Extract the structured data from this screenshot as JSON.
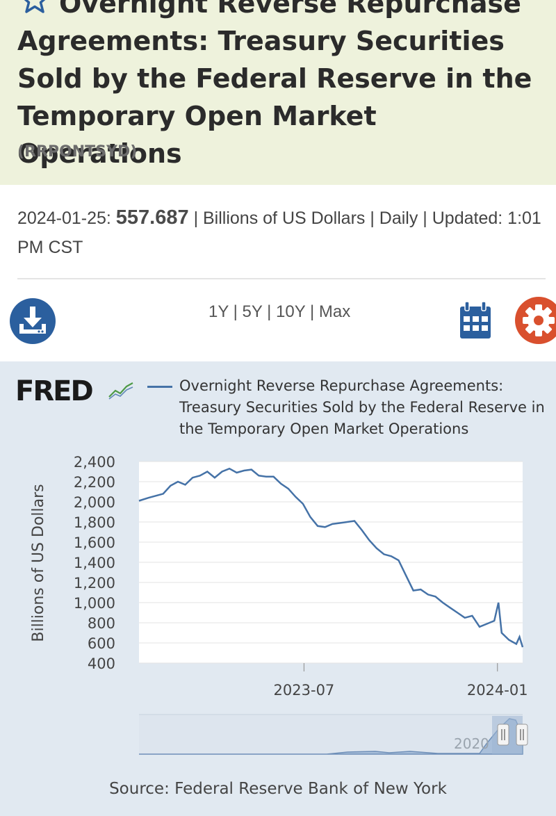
{
  "header": {
    "title": "Overnight Reverse Repurchase Agreements: Treasury Securities Sold by the Federal Reserve in the Temporary Open Market Operations",
    "series_id": "(RRPONTSYD)"
  },
  "meta": {
    "date": "2024-01-25:",
    "value": "557.687",
    "rest": "| Billions of US Dollars | Daily | Updated: 1:01 PM CST"
  },
  "toolbar": {
    "ranges": [
      "1Y",
      "5Y",
      "10Y",
      "Max"
    ],
    "separator": "|"
  },
  "chart": {
    "logo": "FRED",
    "legend": "Overnight Reverse Repurchase Agreements: Treasury Securities Sold by the Federal Reserve in the Temporary Open Market Operations",
    "source": "Source: Federal Reserve Bank of New York",
    "navigator_label": "2020"
  },
  "colors": {
    "series": "#4572a7",
    "title_band": "#eef2dc",
    "panel": "#e1e9f1",
    "accent_blue": "#2b5f9e",
    "accent_orange": "#d9502e"
  },
  "chart_data": {
    "type": "line",
    "title": "Overnight Reverse Repurchase Agreements: Treasury Securities Sold by the Federal Reserve in the Temporary Open Market Operations",
    "xlabel": "",
    "ylabel": "Billions of US Dollars",
    "ylim": [
      400,
      2400
    ],
    "yticks": [
      400,
      600,
      800,
      1000,
      1200,
      1400,
      1600,
      1800,
      2000,
      2200,
      2400
    ],
    "ytick_labels": [
      "400",
      "600",
      "800",
      "1,000",
      "1,200",
      "1,400",
      "1,600",
      "1,800",
      "2,000",
      "2,200",
      "2,400"
    ],
    "xlim": [
      "2023-01-25",
      "2024-01-25"
    ],
    "xticks": [
      {
        "date": "2023-07-01",
        "label": "2023-07"
      },
      {
        "date": "2024-01-01",
        "label": "2024-01"
      }
    ],
    "series": [
      {
        "name": "RRPONTSYD",
        "points": [
          [
            "2023-01-25",
            2010
          ],
          [
            "2023-02-03",
            2040
          ],
          [
            "2023-02-10",
            2060
          ],
          [
            "2023-02-17",
            2080
          ],
          [
            "2023-02-24",
            2160
          ],
          [
            "2023-03-03",
            2200
          ],
          [
            "2023-03-10",
            2170
          ],
          [
            "2023-03-17",
            2240
          ],
          [
            "2023-03-24",
            2260
          ],
          [
            "2023-03-31",
            2300
          ],
          [
            "2023-04-07",
            2240
          ],
          [
            "2023-04-14",
            2300
          ],
          [
            "2023-04-21",
            2330
          ],
          [
            "2023-04-28",
            2290
          ],
          [
            "2023-05-05",
            2310
          ],
          [
            "2023-05-12",
            2320
          ],
          [
            "2023-05-19",
            2260
          ],
          [
            "2023-05-26",
            2250
          ],
          [
            "2023-06-02",
            2250
          ],
          [
            "2023-06-09",
            2180
          ],
          [
            "2023-06-16",
            2130
          ],
          [
            "2023-06-23",
            2050
          ],
          [
            "2023-06-30",
            1980
          ],
          [
            "2023-07-07",
            1850
          ],
          [
            "2023-07-14",
            1760
          ],
          [
            "2023-07-21",
            1750
          ],
          [
            "2023-07-28",
            1780
          ],
          [
            "2023-08-04",
            1790
          ],
          [
            "2023-08-11",
            1800
          ],
          [
            "2023-08-18",
            1810
          ],
          [
            "2023-08-25",
            1720
          ],
          [
            "2023-09-01",
            1620
          ],
          [
            "2023-09-08",
            1540
          ],
          [
            "2023-09-15",
            1480
          ],
          [
            "2023-09-22",
            1460
          ],
          [
            "2023-09-29",
            1420
          ],
          [
            "2023-10-06",
            1270
          ],
          [
            "2023-10-13",
            1120
          ],
          [
            "2023-10-20",
            1130
          ],
          [
            "2023-10-27",
            1080
          ],
          [
            "2023-11-03",
            1060
          ],
          [
            "2023-11-10",
            1000
          ],
          [
            "2023-11-17",
            950
          ],
          [
            "2023-11-24",
            900
          ],
          [
            "2023-12-01",
            850
          ],
          [
            "2023-12-08",
            870
          ],
          [
            "2023-12-15",
            760
          ],
          [
            "2023-12-22",
            790
          ],
          [
            "2023-12-29",
            820
          ],
          [
            "2024-01-02",
            1000
          ],
          [
            "2024-01-05",
            700
          ],
          [
            "2024-01-12",
            630
          ],
          [
            "2024-01-19",
            590
          ],
          [
            "2024-01-22",
            660
          ],
          [
            "2024-01-25",
            557.687
          ]
        ]
      }
    ]
  }
}
